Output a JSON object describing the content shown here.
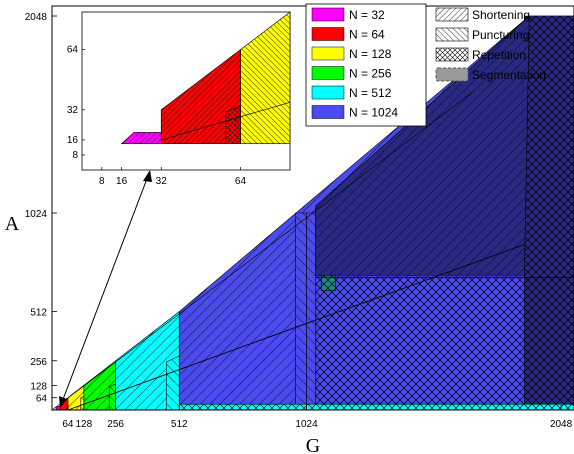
{
  "chart_data": {
    "type": "area",
    "title": "",
    "xlabel": "G",
    "ylabel": "A",
    "xlim": [
      0,
      2100
    ],
    "ylim": [
      0,
      2100
    ],
    "x_ticks": [
      {
        "value": 64,
        "label": "64"
      },
      {
        "value": 128,
        "label": "128"
      },
      {
        "value": 256,
        "label": "256"
      },
      {
        "value": 512,
        "label": "512"
      },
      {
        "value": 1024,
        "label": "1024"
      },
      {
        "value": 2048,
        "label": "2048"
      }
    ],
    "y_ticks": [
      {
        "value": 64,
        "label": "64"
      },
      {
        "value": 128,
        "label": "128"
      },
      {
        "value": 256,
        "label": "256"
      },
      {
        "value": 512,
        "label": "512"
      },
      {
        "value": 1024,
        "label": "1024"
      },
      {
        "value": 2048,
        "label": "2048"
      }
    ],
    "legend_position": "top-right",
    "series": [
      {
        "name": "N = 32",
        "color": "#ff00ff",
        "n": 32
      },
      {
        "name": "N = 64",
        "color": "#ff0000",
        "n": 64
      },
      {
        "name": "N = 128",
        "color": "#ffff00",
        "n": 128
      },
      {
        "name": "N = 256",
        "color": "#00ff00",
        "n": 256
      },
      {
        "name": "N = 512",
        "color": "#00ffff",
        "n": 512
      },
      {
        "name": "N = 1024",
        "color": "#4b4bf0",
        "n": 1024
      }
    ],
    "methods": [
      {
        "name": "Shortening",
        "pattern": "backslash"
      },
      {
        "name": "Puncturing",
        "pattern": "slash"
      },
      {
        "name": "Repetition",
        "pattern": "cross"
      },
      {
        "name": "Segmentation",
        "pattern": "segmentation"
      }
    ],
    "inset": {
      "xlim": [
        0,
        84
      ],
      "ylim": [
        0,
        84
      ],
      "x_ticks": [
        {
          "value": 8,
          "label": "8"
        },
        {
          "value": 16,
          "label": "16"
        },
        {
          "value": 32,
          "label": "32"
        },
        {
          "value": 64,
          "label": "64"
        }
      ],
      "y_ticks": [
        {
          "value": 8,
          "label": "8"
        },
        {
          "value": 16,
          "label": "16"
        },
        {
          "value": 32,
          "label": "32"
        },
        {
          "value": 64,
          "label": "64"
        }
      ]
    }
  }
}
